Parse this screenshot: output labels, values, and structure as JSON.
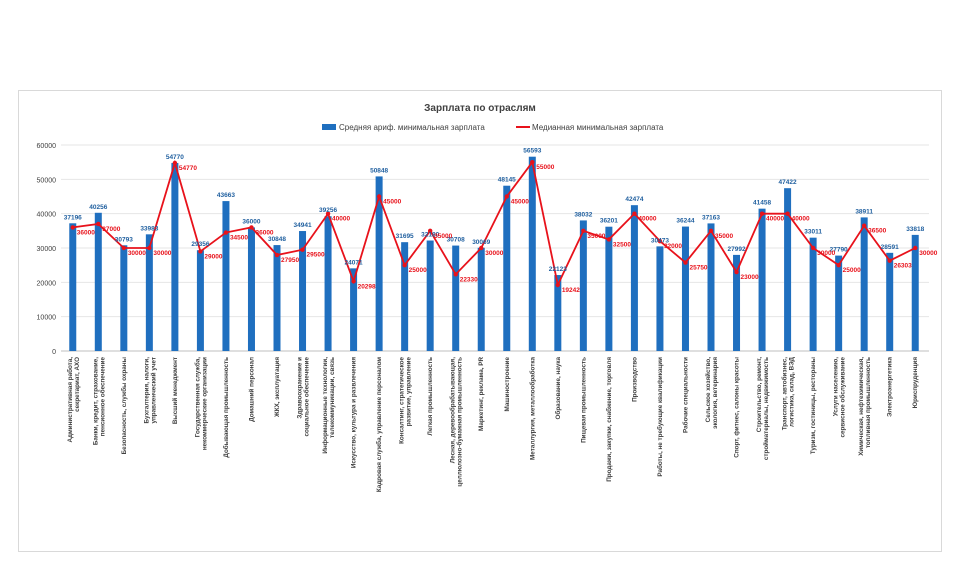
{
  "chart_data": {
    "type": "bar+line",
    "title": "Зарплата по отраслям",
    "ylim": [
      0,
      60000
    ],
    "yticks": [
      0,
      10000,
      20000,
      30000,
      40000,
      50000,
      60000
    ],
    "grid": true,
    "legend_position": "top",
    "colors": {
      "bar": "#1f6fbf",
      "line": "#e8121b",
      "bar_label": "#1f5f9f",
      "line_label": "#e8121b"
    },
    "categories": [
      "Административная работа, секретариат, АХО",
      "Банки, кредит, страхование, пенсионное обеспечение",
      "Безопасность, службы охраны",
      "Бухгалтерия, налоги, управленческий учет",
      "Высший менеджмент",
      "Государственная служба, некоммерческие организации",
      "Добывающая промышленность",
      "Домашний персонал",
      "ЖКХ, эксплуатация",
      "Здравоохранение и социальное обеспечение",
      "Информационные технологии, телекоммуникации, связь",
      "Искусство, культура и развлечения",
      "Кадровая служба, управление персоналом",
      "Консалтинг, стратегическое развитие, управление",
      "Легкая промышленность",
      "Лесная, деревообрабатывающая, целлюлозно-бумажная промышленность",
      "Маркетинг, реклама, PR",
      "Машиностроение",
      "Металлургия, металлообработка",
      "Образование, наука",
      "Пищевая промышленность",
      "Продажи, закупки, снабжение, торговля",
      "Производство",
      "Работы, не требующие квалификации",
      "Рабочие специальности",
      "Сельское хозяйство, экология, ветеринария",
      "Спорт, фитнес, салоны красоты",
      "Строительство, ремонт, стройматериалы, недвижимость",
      "Транспорт, автобизнес, логистика, склад, ВЭД",
      "Туризм, гостиницы, рестораны",
      "Услуги населению, сервисное обслуживание",
      "Химическая, нефтехимическая, топливная промышленность",
      "Электроэнергетика",
      "Юриспруденция"
    ],
    "series": [
      {
        "name": "Средняя ариф. минимальная зарплата",
        "type": "bar",
        "values": [
          37196,
          40256,
          30793,
          33983,
          54770,
          29356,
          43663,
          36000,
          30848,
          34941,
          39256,
          24071,
          50848,
          31695,
          32180,
          30708,
          30069,
          48145,
          56593,
          22123,
          38032,
          36201,
          42474,
          30473,
          36244,
          37163,
          27992,
          41458,
          47422,
          33011,
          27790,
          38911,
          28591,
          33818
        ]
      },
      {
        "name": "Медианная минимальная зарплата",
        "type": "line",
        "values": [
          36000,
          37000,
          30000,
          30000,
          54770,
          29000,
          34500,
          36000,
          27950,
          29500,
          40000,
          20298,
          45000,
          25000,
          35000,
          22330,
          30000,
          45000,
          55000,
          19242,
          35000,
          32500,
          40000,
          32000,
          25750,
          35000,
          23000,
          40000,
          40000,
          30000,
          25000,
          36500,
          26303,
          30000
        ]
      }
    ]
  }
}
